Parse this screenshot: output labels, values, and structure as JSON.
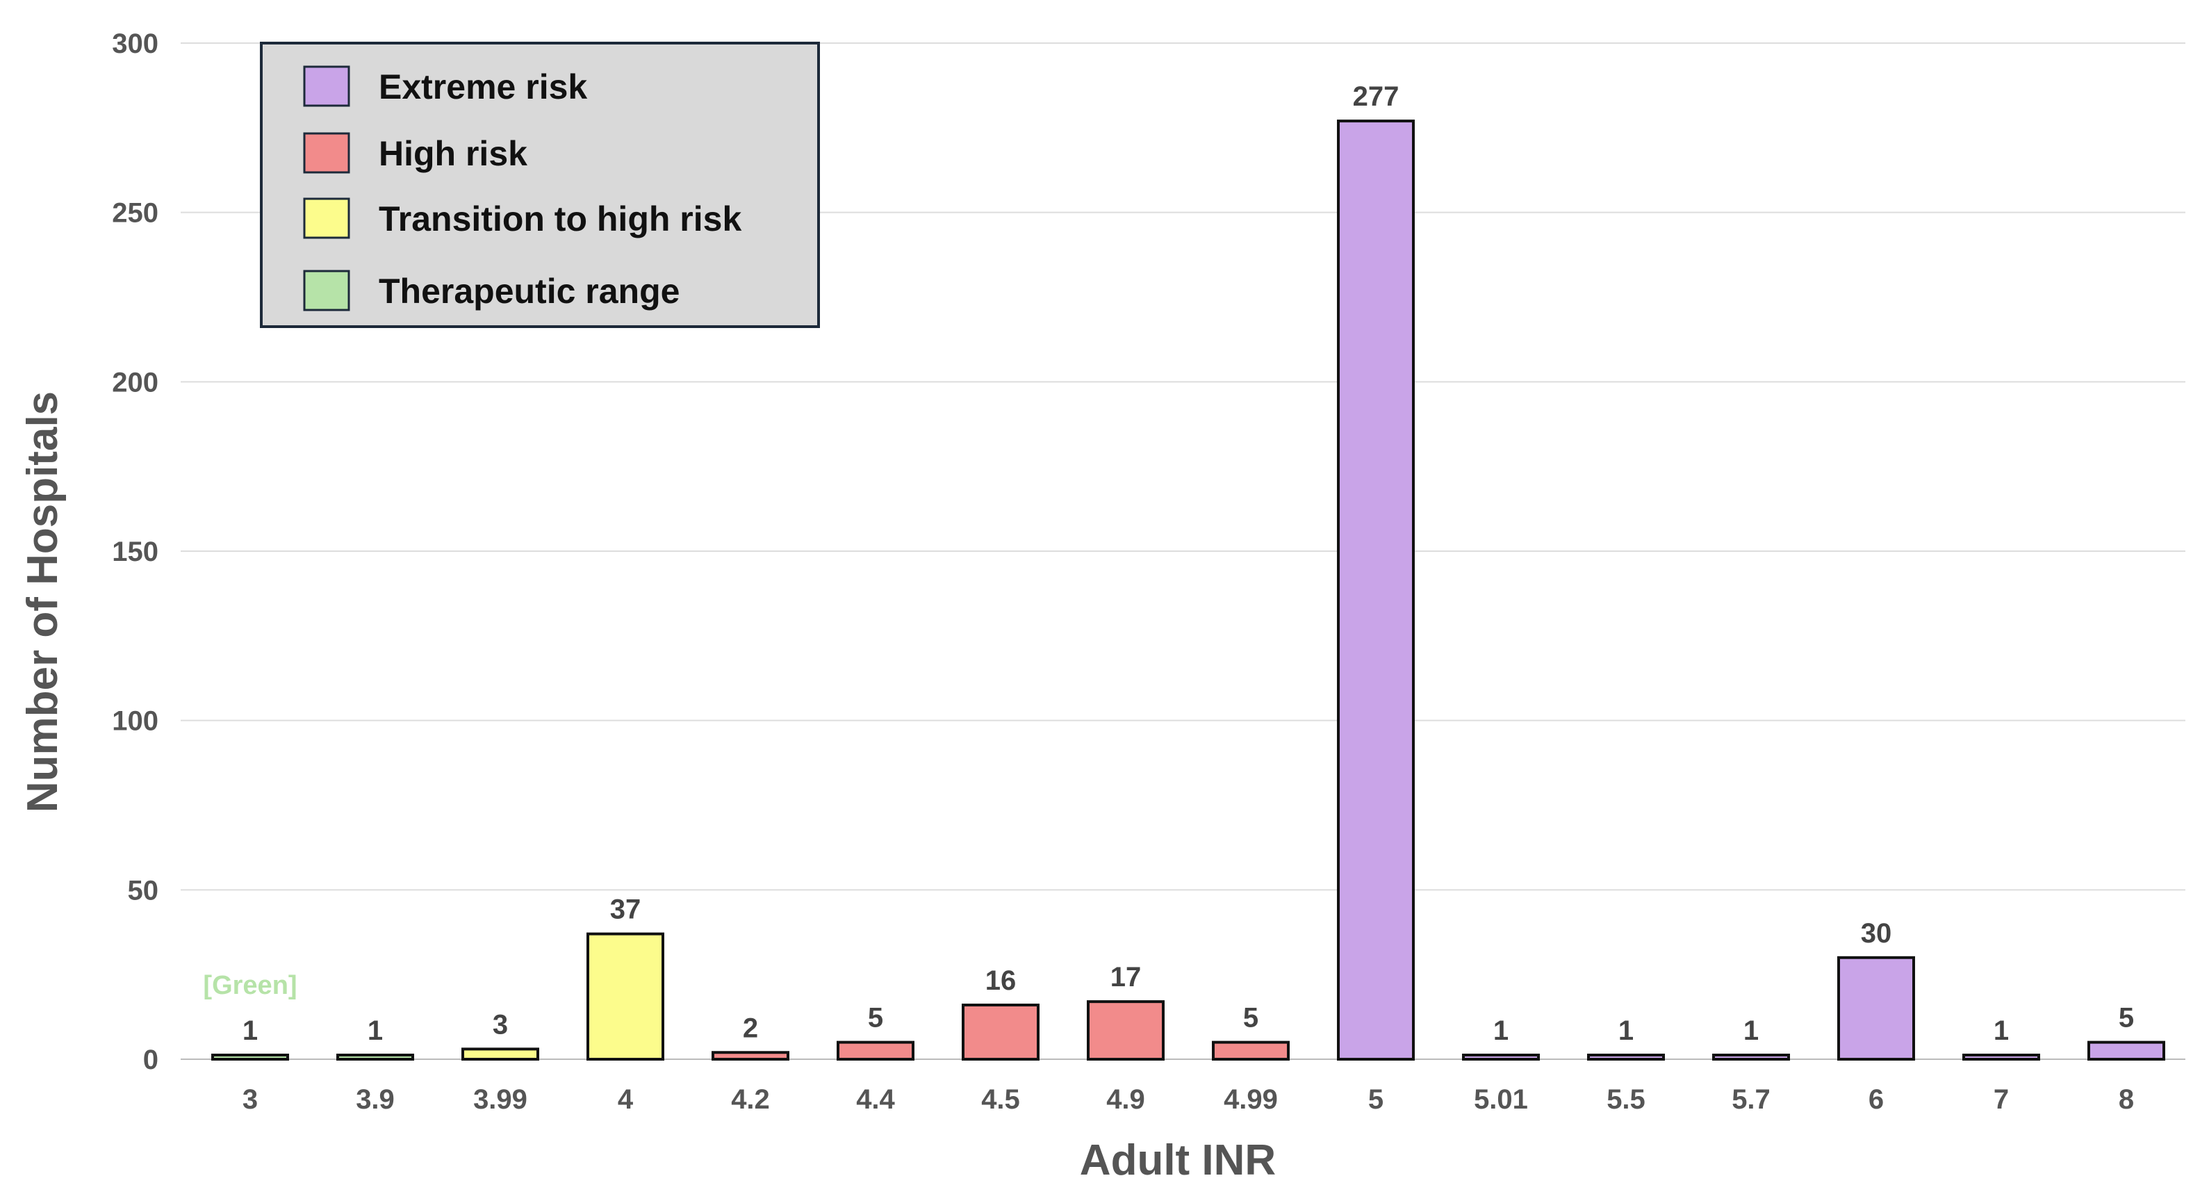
{
  "chart_data": {
    "type": "bar",
    "xlabel": "Adult INR",
    "ylabel": "Number of Hospitals",
    "ylim": [
      0,
      300
    ],
    "yticks": [
      0,
      50,
      100,
      150,
      200,
      250,
      300
    ],
    "grid": true,
    "legend_position": "top-left",
    "categories": [
      "3",
      "3.9",
      "3.99",
      "4",
      "4.2",
      "4.4",
      "4.5",
      "4.9",
      "4.99",
      "5",
      "5.01",
      "5.5",
      "5.7",
      "6",
      "7",
      "8"
    ],
    "values": [
      1,
      1,
      3,
      37,
      2,
      5,
      16,
      17,
      5,
      277,
      1,
      1,
      1,
      30,
      1,
      5
    ],
    "bar_classes": [
      "therapeutic",
      "therapeutic",
      "transition",
      "transition",
      "high",
      "high",
      "high",
      "high",
      "high",
      "extreme",
      "extreme",
      "extreme",
      "extreme",
      "extreme",
      "extreme",
      "extreme"
    ],
    "data_labels": [
      "1",
      "1",
      "3",
      "37",
      "2",
      "5",
      "16",
      "17",
      "5",
      "277",
      "1",
      "1",
      "1",
      "30",
      "1",
      "5"
    ],
    "legend": [
      {
        "key": "extreme",
        "label": "Extreme risk",
        "color": "#c9a4e8"
      },
      {
        "key": "high",
        "label": "High risk",
        "color": "#f28b8b"
      },
      {
        "key": "transition",
        "label": "Transition to high risk",
        "color": "#fcfc8c"
      },
      {
        "key": "therapeutic",
        "label": "Therapeutic range",
        "color": "#b6e3a8"
      }
    ],
    "annotations": [
      {
        "text": "[Green]",
        "category": "3",
        "color": "#b6e3a8"
      }
    ]
  }
}
